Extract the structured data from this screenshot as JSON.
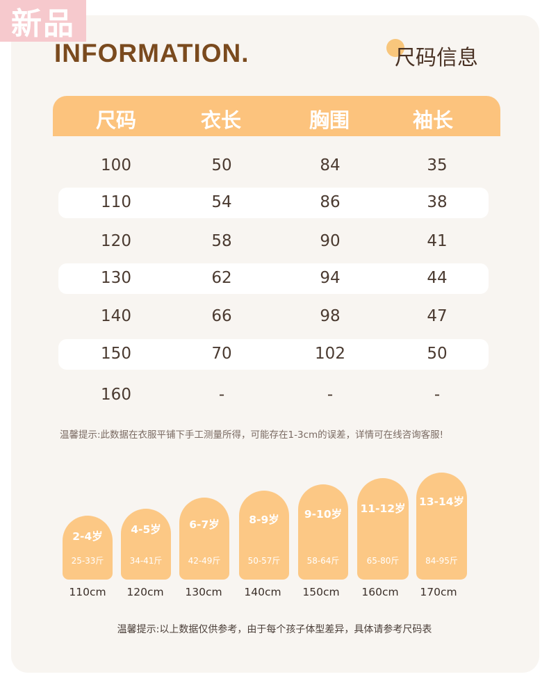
{
  "badge": "新品",
  "title": "INFORMATION.",
  "subtitle": "尺码信息",
  "table": {
    "headers": [
      "尺码",
      "衣长",
      "胸围",
      "袖长"
    ],
    "rows": [
      [
        "100",
        "50",
        "84",
        "35"
      ],
      [
        "110",
        "54",
        "86",
        "38"
      ],
      [
        "120",
        "58",
        "90",
        "41"
      ],
      [
        "130",
        "62",
        "94",
        "44"
      ],
      [
        "140",
        "66",
        "98",
        "47"
      ],
      [
        "150",
        "70",
        "102",
        "50"
      ],
      [
        "160",
        "-",
        "-",
        "-"
      ]
    ]
  },
  "note1": "温馨提示:此数据在衣服平铺下手工测量所得，可能存在1-3cm的误差，详情可在线咨询客服!",
  "guide": [
    {
      "age": "2-4岁",
      "weight": "25-33斤",
      "height": "110cm"
    },
    {
      "age": "4-5岁",
      "weight": "34-41斤",
      "height": "120cm"
    },
    {
      "age": "6-7岁",
      "weight": "42-49斤",
      "height": "130cm"
    },
    {
      "age": "8-9岁",
      "weight": "50-57斤",
      "height": "140cm"
    },
    {
      "age": "9-10岁",
      "weight": "58-64斤",
      "height": "150cm"
    },
    {
      "age": "11-12岁",
      "weight": "65-80斤",
      "height": "160cm"
    },
    {
      "age": "13-14岁",
      "weight": "84-95斤",
      "height": "170cm"
    }
  ],
  "note2": "温馨提示:以上数据仅供参考，由于每个孩子体型差异，具体请参考尺码表",
  "colors": {
    "accent": "#fcc37d",
    "title": "#7a4a1e",
    "card": "#f8f5f1"
  }
}
